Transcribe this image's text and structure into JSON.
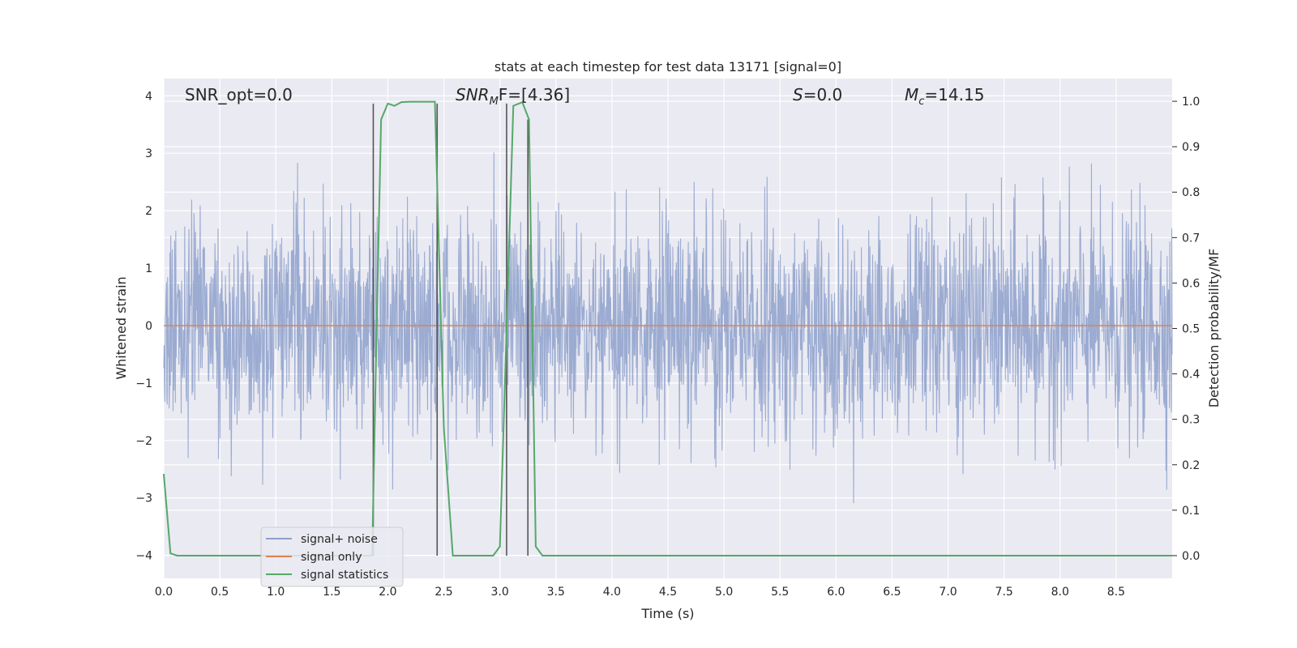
{
  "chart_data": {
    "type": "line",
    "title": "stats at each timestep for test data 13171 [signal=0]",
    "xlabel": "Time (s)",
    "ylabel_left": "Whitened strain",
    "ylabel_right": "Detection probability/MF",
    "xlim": [
      0,
      9
    ],
    "ylim_left": [
      -4.4,
      4.3
    ],
    "ylim_right": [
      -0.05,
      1.05
    ],
    "grid": true,
    "legend_position": "lower-left",
    "x_ticks": [
      "0.0",
      "0.5",
      "1.0",
      "1.5",
      "2.0",
      "2.5",
      "3.0",
      "3.5",
      "4.0",
      "4.5",
      "5.0",
      "5.5",
      "6.0",
      "6.5",
      "7.0",
      "7.5",
      "8.0",
      "8.5"
    ],
    "y_ticks_left": [
      "4",
      "3",
      "2",
      "1",
      "0",
      "−1",
      "−2",
      "−3",
      "−4"
    ],
    "y_ticks_right": [
      "1.0",
      "0.9",
      "0.8",
      "0.7",
      "0.6",
      "0.5",
      "0.4",
      "0.3",
      "0.2",
      "0.1",
      "0.0"
    ],
    "annotations": {
      "snr_opt": "SNR_opt=0.0",
      "snr_mf_prefix": "SNR",
      "snr_mf_sub": "M",
      "snr_mf_suffix": "F=[4.36]",
      "s_prefix": "S",
      "s_suffix": "=0.0",
      "mc_prefix": "M",
      "mc_sub": "c",
      "mc_suffix": "=14.15"
    },
    "series": [
      {
        "name": "signal+ noise",
        "axis": "left",
        "color": "#8da0cb",
        "description": "whitened noise, approx Gaussian, sampled densely"
      },
      {
        "name": "signal only",
        "axis": "left",
        "color": "#dd8452",
        "x": [
          0,
          9
        ],
        "y": [
          0,
          0
        ]
      },
      {
        "name": "signal statistics",
        "axis": "right",
        "color": "#55a868",
        "x": [
          0.0,
          0.06,
          0.12,
          1.86,
          1.9,
          1.94,
          2.0,
          2.06,
          2.12,
          2.2,
          2.3,
          2.42,
          2.5,
          2.58,
          2.94,
          3.0,
          3.06,
          3.12,
          3.2,
          3.26,
          3.32,
          3.38,
          9.0
        ],
        "y": [
          0.18,
          0.005,
          0.0,
          0.0,
          0.5,
          0.96,
          0.995,
          0.99,
          0.998,
          0.999,
          0.999,
          0.999,
          0.28,
          0.0,
          0.0,
          0.02,
          0.5,
          0.99,
          0.998,
          0.96,
          0.02,
          0.0,
          0.0
        ]
      }
    ],
    "vertical_markers": [
      {
        "x": 1.87,
        "y_top": 0.995,
        "y_bottom": 0.0
      },
      {
        "x": 2.44,
        "y_top": 0.995,
        "y_bottom": 0.0
      },
      {
        "x": 3.06,
        "y_top": 0.995,
        "y_bottom": 0.0
      },
      {
        "x": 3.25,
        "y_top": 0.96,
        "y_bottom": 0.0
      }
    ],
    "legend": [
      "signal+ noise",
      "signal only",
      "signal statistics"
    ]
  },
  "colors": {
    "plot_bg": "#eaeaf2",
    "grid": "#ffffff",
    "noise": "#8da0cb",
    "signal_only": "#dd8452",
    "statistics": "#55a868",
    "marker": "#555555"
  }
}
